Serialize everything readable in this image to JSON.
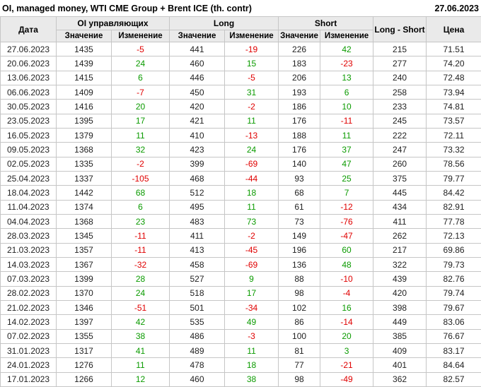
{
  "header": {
    "title": "OI, managed money, WTI CME Group + Brent ICE (th. contr)",
    "date": "27.06.2023"
  },
  "table": {
    "headers": {
      "date": "Дата",
      "oi_group": "OI управляющих",
      "long_group": "Long",
      "short_group": "Short",
      "long_short": "Long - Short",
      "price": "Цена",
      "value": "Значение",
      "change": "Изменение"
    },
    "rows": [
      {
        "date": "27.06.2023",
        "oi": 1435,
        "oi_chg": -5,
        "long": 441,
        "long_chg": -19,
        "short": 226,
        "short_chg": 42,
        "long_short": 215,
        "price": "71.51"
      },
      {
        "date": "20.06.2023",
        "oi": 1439,
        "oi_chg": 24,
        "long": 460,
        "long_chg": 15,
        "short": 183,
        "short_chg": -23,
        "long_short": 277,
        "price": "74.20"
      },
      {
        "date": "13.06.2023",
        "oi": 1415,
        "oi_chg": 6,
        "long": 446,
        "long_chg": -5,
        "short": 206,
        "short_chg": 13,
        "long_short": 240,
        "price": "72.48"
      },
      {
        "date": "06.06.2023",
        "oi": 1409,
        "oi_chg": -7,
        "long": 450,
        "long_chg": 31,
        "short": 193,
        "short_chg": 6,
        "long_short": 258,
        "price": "73.94"
      },
      {
        "date": "30.05.2023",
        "oi": 1416,
        "oi_chg": 20,
        "long": 420,
        "long_chg": -2,
        "short": 186,
        "short_chg": 10,
        "long_short": 233,
        "price": "74.81"
      },
      {
        "date": "23.05.2023",
        "oi": 1395,
        "oi_chg": 17,
        "long": 421,
        "long_chg": 11,
        "short": 176,
        "short_chg": -11,
        "long_short": 245,
        "price": "73.57"
      },
      {
        "date": "16.05.2023",
        "oi": 1379,
        "oi_chg": 11,
        "long": 410,
        "long_chg": -13,
        "short": 188,
        "short_chg": 11,
        "long_short": 222,
        "price": "72.11"
      },
      {
        "date": "09.05.2023",
        "oi": 1368,
        "oi_chg": 32,
        "long": 423,
        "long_chg": 24,
        "short": 176,
        "short_chg": 37,
        "long_short": 247,
        "price": "73.32"
      },
      {
        "date": "02.05.2023",
        "oi": 1335,
        "oi_chg": -2,
        "long": 399,
        "long_chg": -69,
        "short": 140,
        "short_chg": 47,
        "long_short": 260,
        "price": "78.56"
      },
      {
        "date": "25.04.2023",
        "oi": 1337,
        "oi_chg": -105,
        "long": 468,
        "long_chg": -44,
        "short": 93,
        "short_chg": 25,
        "long_short": 375,
        "price": "79.77"
      },
      {
        "date": "18.04.2023",
        "oi": 1442,
        "oi_chg": 68,
        "long": 512,
        "long_chg": 18,
        "short": 68,
        "short_chg": 7,
        "long_short": 445,
        "price": "84.42"
      },
      {
        "date": "11.04.2023",
        "oi": 1374,
        "oi_chg": 6,
        "long": 495,
        "long_chg": 11,
        "short": 61,
        "short_chg": -12,
        "long_short": 434,
        "price": "82.91"
      },
      {
        "date": "04.04.2023",
        "oi": 1368,
        "oi_chg": 23,
        "long": 483,
        "long_chg": 73,
        "short": 73,
        "short_chg": -76,
        "long_short": 411,
        "price": "77.78"
      },
      {
        "date": "28.03.2023",
        "oi": 1345,
        "oi_chg": -11,
        "long": 411,
        "long_chg": -2,
        "short": 149,
        "short_chg": -47,
        "long_short": 262,
        "price": "72.13"
      },
      {
        "date": "21.03.2023",
        "oi": 1357,
        "oi_chg": -11,
        "long": 413,
        "long_chg": -45,
        "short": 196,
        "short_chg": 60,
        "long_short": 217,
        "price": "69.86"
      },
      {
        "date": "14.03.2023",
        "oi": 1367,
        "oi_chg": -32,
        "long": 458,
        "long_chg": -69,
        "short": 136,
        "short_chg": 48,
        "long_short": 322,
        "price": "79.73"
      },
      {
        "date": "07.03.2023",
        "oi": 1399,
        "oi_chg": 28,
        "long": 527,
        "long_chg": 9,
        "short": 88,
        "short_chg": -10,
        "long_short": 439,
        "price": "82.76"
      },
      {
        "date": "28.02.2023",
        "oi": 1370,
        "oi_chg": 24,
        "long": 518,
        "long_chg": 17,
        "short": 98,
        "short_chg": -4,
        "long_short": 420,
        "price": "79.74"
      },
      {
        "date": "21.02.2023",
        "oi": 1346,
        "oi_chg": -51,
        "long": 501,
        "long_chg": -34,
        "short": 102,
        "short_chg": 16,
        "long_short": 398,
        "price": "79.67"
      },
      {
        "date": "14.02.2023",
        "oi": 1397,
        "oi_chg": 42,
        "long": 535,
        "long_chg": 49,
        "short": 86,
        "short_chg": -14,
        "long_short": 449,
        "price": "83.06"
      },
      {
        "date": "07.02.2023",
        "oi": 1355,
        "oi_chg": 38,
        "long": 486,
        "long_chg": -3,
        "short": 100,
        "short_chg": 20,
        "long_short": 385,
        "price": "76.67"
      },
      {
        "date": "31.01.2023",
        "oi": 1317,
        "oi_chg": 41,
        "long": 489,
        "long_chg": 11,
        "short": 81,
        "short_chg": 3,
        "long_short": 409,
        "price": "83.17"
      },
      {
        "date": "24.01.2023",
        "oi": 1276,
        "oi_chg": 11,
        "long": 478,
        "long_chg": 18,
        "short": 77,
        "short_chg": -21,
        "long_short": 401,
        "price": "84.64"
      },
      {
        "date": "17.01.2023",
        "oi": 1266,
        "oi_chg": 12,
        "long": 460,
        "long_chg": 38,
        "short": 98,
        "short_chg": -49,
        "long_short": 362,
        "price": "82.57"
      }
    ]
  },
  "colors": {
    "positive": "#0b9b00",
    "negative": "#e00000",
    "header_bg": "#eaeaea",
    "border": "#c6c6c6"
  }
}
